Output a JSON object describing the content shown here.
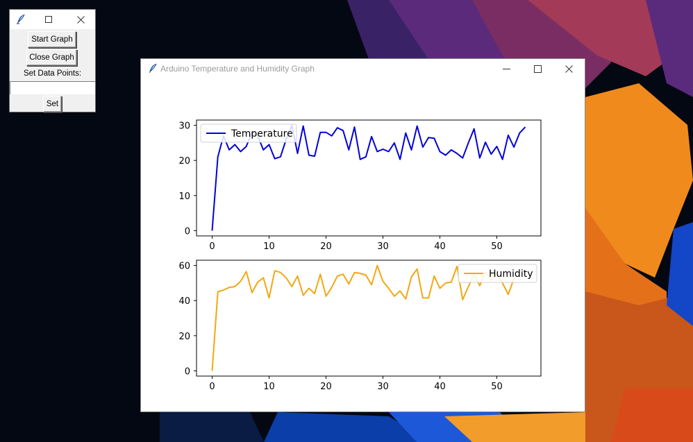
{
  "control_window": {
    "start_label": "Start Graph",
    "close_label": "Close Graph",
    "data_points_label": "Set Data Points:",
    "data_points_value": "",
    "set_label": "Set"
  },
  "graph_window": {
    "title": "Arduino Temperature and Humidity Graph"
  },
  "colors": {
    "temperature": "#0000d8",
    "humidity": "#f2a712"
  },
  "icons": {
    "app": "tk-feather-icon",
    "minimize": "minimize-icon",
    "maximize": "maximize-icon",
    "close": "close-icon"
  },
  "chart_data": [
    {
      "type": "line",
      "series": [
        {
          "name": "Temperature",
          "x": [
            0,
            1,
            2,
            3,
            4,
            5,
            6,
            7,
            8,
            9,
            10,
            11,
            12,
            13,
            14,
            15,
            16,
            17,
            18,
            19,
            20,
            21,
            22,
            23,
            24,
            25,
            26,
            27,
            28,
            29,
            30,
            31,
            32,
            33,
            34,
            35,
            36,
            37,
            38,
            39,
            40,
            41,
            42,
            43,
            44,
            45,
            46,
            47,
            48,
            49,
            50,
            51,
            52,
            53,
            54,
            55
          ],
          "y": [
            0,
            21,
            27,
            23,
            24.5,
            22.5,
            24,
            28,
            27,
            23,
            24.5,
            20.5,
            21,
            26,
            30,
            22,
            29.8,
            21.5,
            21.2,
            28,
            28,
            27,
            29.3,
            28.5,
            23,
            29.5,
            20.3,
            21,
            26.8,
            22.5,
            23.2,
            22.5,
            25,
            20.3,
            27.8,
            23,
            29.8,
            23.8,
            26.5,
            26.3,
            22.5,
            21.5,
            23,
            22,
            20.7,
            25,
            29,
            20.7,
            25.2,
            21.8,
            24,
            20.3,
            27.2,
            23.8,
            27.8,
            29.5
          ]
        }
      ],
      "xlim": [
        -2.75,
        57.75
      ],
      "ylim": [
        -1.5,
        31.5
      ],
      "xticks": [
        0,
        10,
        20,
        30,
        40,
        50
      ],
      "yticks": [
        0,
        10,
        20,
        30
      ],
      "legend": "upper-left"
    },
    {
      "type": "line",
      "series": [
        {
          "name": "Humidity",
          "x": [
            0,
            1,
            2,
            3,
            4,
            5,
            6,
            7,
            8,
            9,
            10,
            11,
            12,
            13,
            14,
            15,
            16,
            17,
            18,
            19,
            20,
            21,
            22,
            23,
            24,
            25,
            26,
            27,
            28,
            29,
            30,
            31,
            32,
            33,
            34,
            35,
            36,
            37,
            38,
            39,
            40,
            41,
            42,
            43,
            44,
            45,
            46,
            47,
            48,
            49,
            50,
            51,
            52,
            53
          ],
          "y": [
            0,
            45,
            46,
            47.5,
            48,
            51,
            56.5,
            44.5,
            50.5,
            53,
            41.5,
            57,
            56,
            53,
            48,
            54,
            43,
            47,
            44,
            55,
            42.5,
            47.5,
            54,
            55,
            49.5,
            56,
            55.5,
            54.5,
            49,
            60,
            51,
            47,
            42.5,
            45.5,
            41,
            53.5,
            58,
            41.5,
            41.5,
            54,
            47,
            50,
            50.5,
            59.5,
            40.5,
            48,
            55,
            48.5,
            56,
            52,
            55,
            50,
            43.5,
            52.5
          ]
        }
      ],
      "xlim": [
        -2.75,
        57.75
      ],
      "ylim": [
        -3,
        63
      ],
      "xticks": [
        0,
        10,
        20,
        30,
        40,
        50
      ],
      "yticks": [
        0,
        20,
        40,
        60
      ],
      "legend": "upper-right"
    }
  ]
}
